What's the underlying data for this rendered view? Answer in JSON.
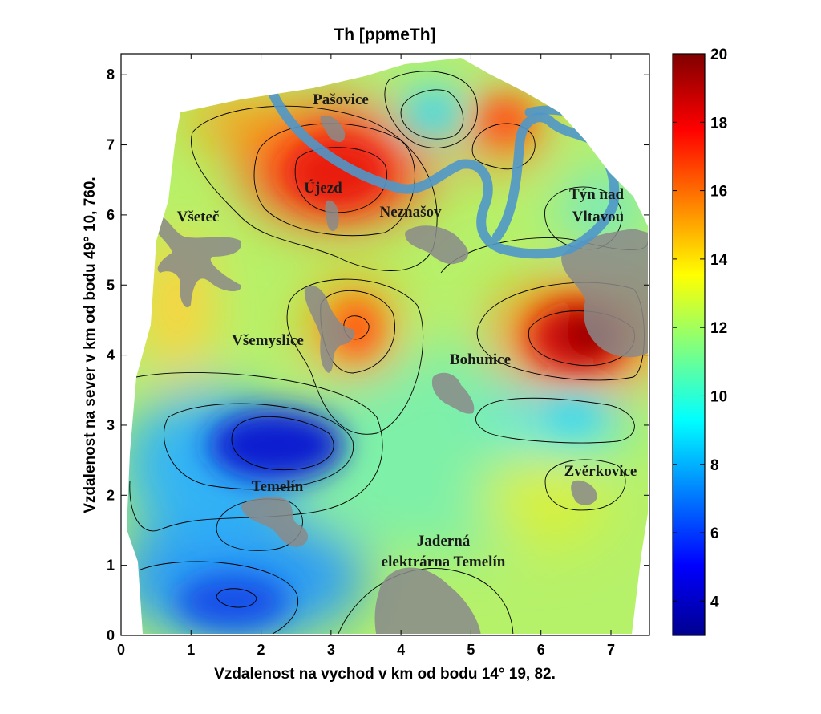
{
  "title": "Th [ppmeTh]",
  "xlabel": "Vzdalenost na vychod v km od bodu 14° 19, 82.",
  "ylabel": "Vzdalenost na sever v km od bodu 49° 10, 760.",
  "x_ticks": [
    "0",
    "1",
    "2",
    "3",
    "4",
    "5",
    "6",
    "7"
  ],
  "y_ticks": [
    "0",
    "1",
    "2",
    "3",
    "4",
    "5",
    "6",
    "7",
    "8"
  ],
  "xlim": [
    0,
    7.55
  ],
  "ylim": [
    0,
    8.3
  ],
  "colorbar": {
    "range": [
      3,
      20
    ],
    "ticks": [
      "4",
      "6",
      "8",
      "10",
      "12",
      "14",
      "16",
      "18",
      "20"
    ],
    "colormap": "jet"
  },
  "places": [
    {
      "name": "Pašovice"
    },
    {
      "name": "Újezd"
    },
    {
      "name": "Neznašov"
    },
    {
      "name": "Všeteč"
    },
    {
      "name": "Týn nad"
    },
    {
      "name": "Vltavou"
    },
    {
      "name": "Všemyslice"
    },
    {
      "name": "Bohunice"
    },
    {
      "name": "Temelín"
    },
    {
      "name": "Zvěrkovice"
    },
    {
      "name": "Jaderná"
    },
    {
      "name": "elektrárna Temelín"
    }
  ],
  "colors": {
    "river": "#4f97c9",
    "settlement": "#8a8a8a",
    "contour": "#000000"
  }
}
